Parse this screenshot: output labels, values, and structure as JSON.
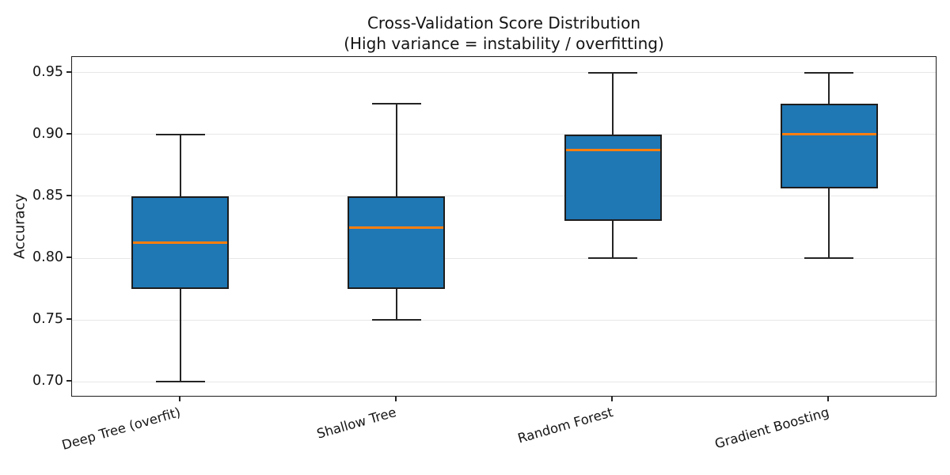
{
  "chart_data": {
    "type": "box",
    "title": "Cross-Validation Score Distribution",
    "subtitle": "(High variance = instability / overfitting)",
    "ylabel": "Accuracy",
    "xlabel": "",
    "ylim": [
      0.6875,
      0.9625
    ],
    "yticks": [
      0.95,
      0.9,
      0.85,
      0.8,
      0.75,
      0.7
    ],
    "ytick_labels": [
      "0.95",
      "0.90",
      "0.85",
      "0.80",
      "0.75",
      "0.70"
    ],
    "grid": "horizontal gridlines at y ticks, light gray, no vertical grid",
    "legend": "none",
    "x_tick_rotation_deg": 16,
    "categories": [
      "Deep Tree (overfit)",
      "Shallow Tree",
      "Random Forest",
      "Gradient Boosting"
    ],
    "boxes": [
      {
        "label": "Deep Tree (overfit)",
        "whisker_low": 0.7,
        "q1": 0.775,
        "median": 0.8125,
        "q3": 0.85,
        "whisker_high": 0.9
      },
      {
        "label": "Shallow Tree",
        "whisker_low": 0.75,
        "q1": 0.775,
        "median": 0.825,
        "q3": 0.85,
        "whisker_high": 0.925
      },
      {
        "label": "Random Forest",
        "whisker_low": 0.8,
        "q1": 0.83,
        "median": 0.8875,
        "q3": 0.9,
        "whisker_high": 0.95
      },
      {
        "label": "Gradient Boosting",
        "whisker_low": 0.8,
        "q1": 0.8565,
        "median": 0.9,
        "q3": 0.925,
        "whisker_high": 0.95
      }
    ],
    "colors": {
      "box_fill": "#1f77b4",
      "box_edge": "#1d1d1d",
      "median": "#ff7f0e",
      "whisker": "#242424",
      "grid": "#e7e7e7",
      "text": "#141414",
      "background": "#ffffff"
    }
  }
}
